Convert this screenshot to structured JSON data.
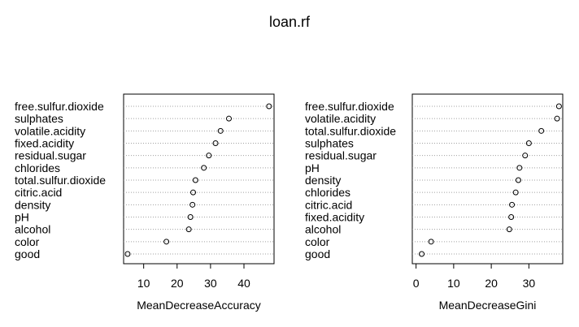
{
  "title": "loan.rf",
  "chart_data": [
    {
      "type": "scatter",
      "xlabel": "MeanDecreaseAccuracy",
      "xlim": [
        4.0,
        49.0
      ],
      "xticks": [
        10,
        20,
        30,
        40
      ],
      "grid": "horizontal-dotted",
      "categories": [
        "free.sulfur.dioxide",
        "sulphates",
        "volatile.acidity",
        "fixed.acidity",
        "residual.sugar",
        "chlorides",
        "total.sulfur.dioxide",
        "citric.acid",
        "density",
        "pH",
        "alcohol",
        "color",
        "good"
      ],
      "values": [
        47.5,
        35.5,
        33.0,
        31.5,
        29.5,
        28.0,
        25.5,
        24.8,
        24.6,
        24.0,
        23.5,
        16.8,
        5.2
      ]
    },
    {
      "type": "scatter",
      "xlabel": "MeanDecreaseGini",
      "xlim": [
        -1.0,
        39.0
      ],
      "xticks": [
        0,
        10,
        20,
        30
      ],
      "grid": "horizontal-dotted",
      "categories": [
        "free.sulfur.dioxide",
        "volatile.acidity",
        "total.sulfur.dioxide",
        "sulphates",
        "residual.sugar",
        "pH",
        "density",
        "chlorides",
        "citric.acid",
        "fixed.acidity",
        "alcohol",
        "color",
        "good"
      ],
      "values": [
        38.0,
        37.5,
        33.3,
        30.0,
        29.0,
        27.5,
        27.2,
        26.5,
        25.5,
        25.3,
        24.8,
        4.0,
        1.5
      ]
    }
  ]
}
